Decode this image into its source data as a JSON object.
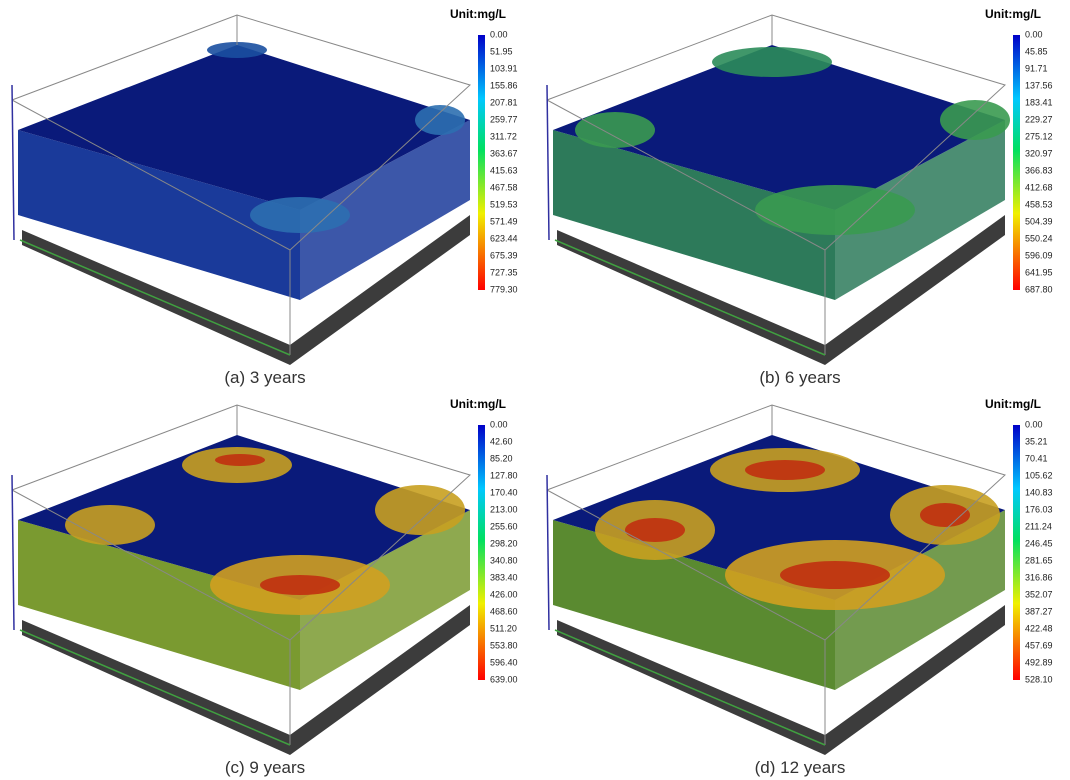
{
  "panels": [
    {
      "caption": "(a) 3 years",
      "unit": "Unit:mg/L",
      "colorbar_labels": [
        "0.00",
        "51.95",
        "103.91",
        "155.86",
        "207.81",
        "259.77",
        "311.72",
        "363.67",
        "415.63",
        "467.58",
        "519.53",
        "571.49",
        "623.44",
        "675.39",
        "727.35",
        "779.30"
      ]
    },
    {
      "caption": "(b) 6 years",
      "unit": "Unit:mg/L",
      "colorbar_labels": [
        "0.00",
        "45.85",
        "91.71",
        "137.56",
        "183.41",
        "229.27",
        "275.12",
        "320.97",
        "366.83",
        "412.68",
        "458.53",
        "504.39",
        "550.24",
        "596.09",
        "641.95",
        "687.80"
      ]
    },
    {
      "caption": "(c) 9 years",
      "unit": "Unit:mg/L",
      "colorbar_labels": [
        "0.00",
        "42.60",
        "85.20",
        "127.80",
        "170.40",
        "213.00",
        "255.60",
        "298.20",
        "340.80",
        "383.40",
        "426.00",
        "468.60",
        "511.20",
        "553.80",
        "596.40",
        "639.00"
      ]
    },
    {
      "caption": "(d) 12 years",
      "unit": "Unit:mg/L",
      "colorbar_labels": [
        "0.00",
        "35.21",
        "70.41",
        "105.62",
        "140.83",
        "176.03",
        "211.24",
        "246.45",
        "281.65",
        "316.86",
        "352.07",
        "387.27",
        "422.48",
        "457.69",
        "492.89",
        "528.10"
      ]
    }
  ]
}
